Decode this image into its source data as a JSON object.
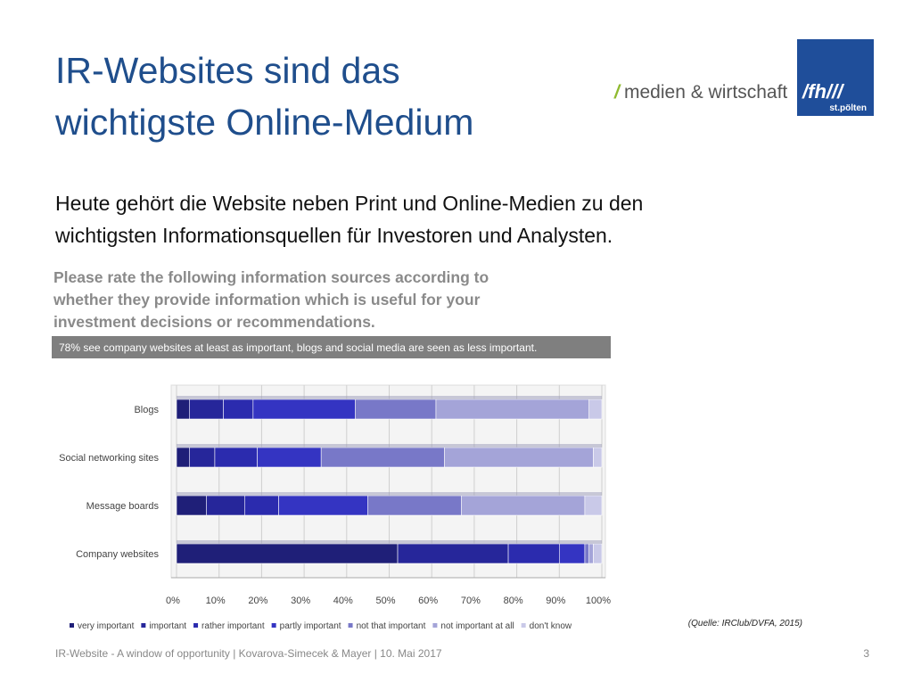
{
  "slide": {
    "title": [
      "IR-Websites sind das",
      "wichtigste Online-Medium"
    ],
    "logo": {
      "mark": "/",
      "name": "medien & wirtschaft",
      "box_top": "/fh///",
      "box_bottom": "st.pölten"
    },
    "body": [
      "Heute gehört die Website neben Print und Online-Medien zu den",
      "wichtigsten Informationsquellen für Investoren und Analysten."
    ],
    "source": "(Quelle: IRClub/DVFA, 2015)",
    "footer": "IR-Website - A window of opportunity | Kovarova-Simecek & Mayer | 10. Mai 2017",
    "page": "3"
  },
  "chart_data": {
    "type": "stacked-barh",
    "title": [
      "Please rate the following information sources according to",
      "whether they provide information which is useful for your",
      "investment decisions or recommendations."
    ],
    "subtitle": "78% see company websites at least as important, blogs and social media are seen as less important.",
    "categories": [
      "Blogs",
      "Social networking sites",
      "Message boards",
      "Company websites"
    ],
    "series": [
      {
        "name": "very important",
        "color": "#1f1f78",
        "values": [
          3,
          3,
          7,
          52
        ]
      },
      {
        "name": "important",
        "color": "#26269a",
        "values": [
          8,
          6,
          9,
          26
        ]
      },
      {
        "name": "rather important",
        "color": "#2b2bae",
        "values": [
          7,
          10,
          8,
          12
        ]
      },
      {
        "name": "partly important",
        "color": "#3434c2",
        "values": [
          24,
          15,
          21,
          6
        ]
      },
      {
        "name": "not that important",
        "color": "#7878c8",
        "values": [
          19,
          29,
          22,
          1
        ]
      },
      {
        "name": "not important at all",
        "color": "#a4a4d8",
        "values": [
          36,
          35,
          29,
          1
        ]
      },
      {
        "name": "don't know",
        "color": "#c9c9e8",
        "values": [
          3,
          2,
          4,
          2
        ]
      }
    ],
    "xlim": [
      0,
      100
    ],
    "xticks": [
      {
        "value": 0,
        "label": "0%"
      },
      {
        "value": 10,
        "label": "10%"
      },
      {
        "value": 20,
        "label": "20%"
      },
      {
        "value": 30,
        "label": "30%"
      },
      {
        "value": 40,
        "label": "40%"
      },
      {
        "value": 50,
        "label": "50%"
      },
      {
        "value": 60,
        "label": "60%"
      },
      {
        "value": 70,
        "label": "70%"
      },
      {
        "value": 80,
        "label": "80%"
      },
      {
        "value": 90,
        "label": "90%"
      },
      {
        "value": 100,
        "label": "100%"
      }
    ],
    "grid": true,
    "legend": "bottom"
  }
}
